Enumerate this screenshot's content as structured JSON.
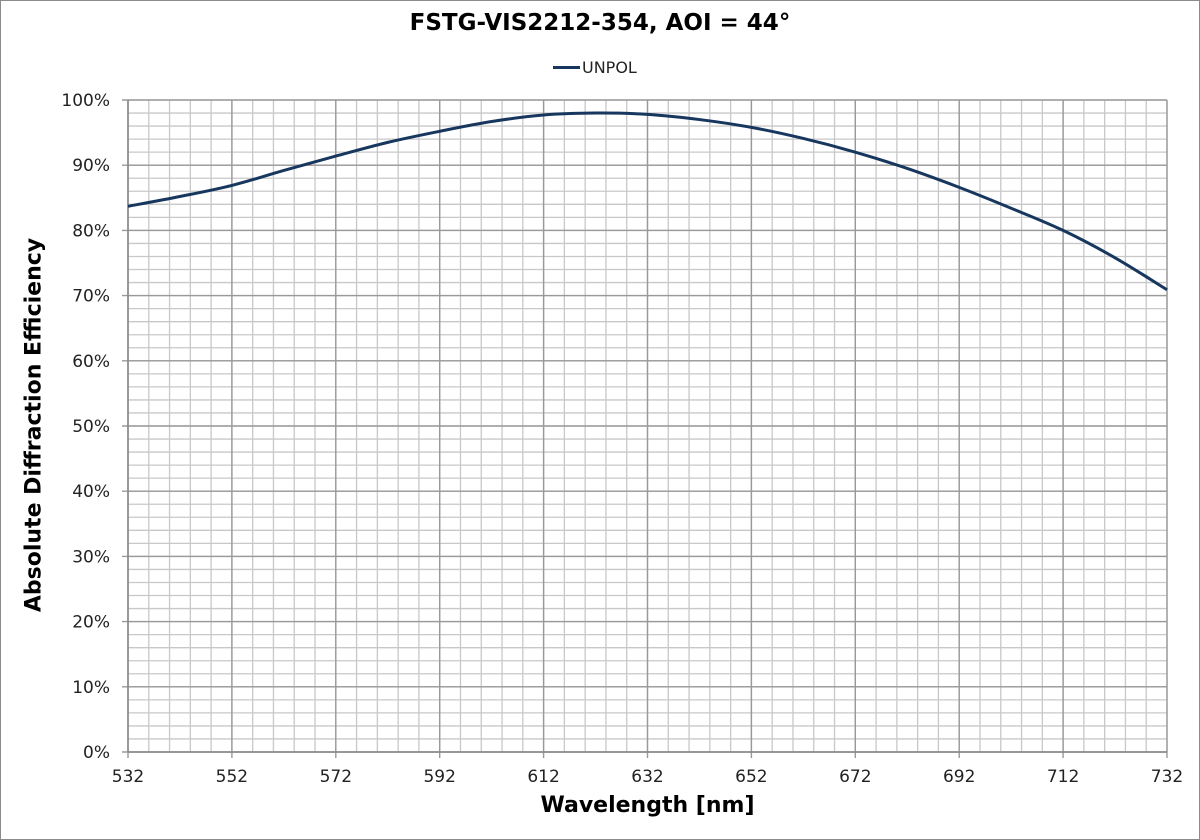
{
  "chart_data": {
    "type": "line",
    "title": "FSTG-VIS2212-354, AOI = 44°",
    "xlabel": "Wavelength [nm]",
    "ylabel": "Absolute Diffraction Efficiency",
    "xlim": [
      532,
      732
    ],
    "ylim": [
      0,
      100
    ],
    "x_ticks": [
      "532",
      "552",
      "572",
      "592",
      "612",
      "632",
      "652",
      "672",
      "692",
      "712",
      "732"
    ],
    "y_ticks": [
      "0%",
      "10%",
      "20%",
      "30%",
      "40%",
      "50%",
      "60%",
      "70%",
      "80%",
      "90%",
      "100%"
    ],
    "grid": true,
    "minor_grid": {
      "x_step": 4,
      "y_step": 2
    },
    "legend_position": "top",
    "series": [
      {
        "name": "UNPOL",
        "color": "#17375e",
        "x": [
          532,
          542,
          552,
          562,
          572,
          582,
          592,
          602,
          612,
          622,
          632,
          642,
          652,
          662,
          672,
          682,
          692,
          702,
          712,
          722,
          732
        ],
        "values": [
          83.7,
          85.2,
          86.9,
          89.2,
          91.4,
          93.5,
          95.2,
          96.7,
          97.7,
          98.0,
          97.8,
          97.0,
          95.8,
          94.1,
          92.0,
          89.5,
          86.6,
          83.4,
          80.0,
          75.8,
          70.9
        ]
      }
    ]
  },
  "legend": {
    "items": [
      {
        "label": "UNPOL"
      }
    ]
  }
}
